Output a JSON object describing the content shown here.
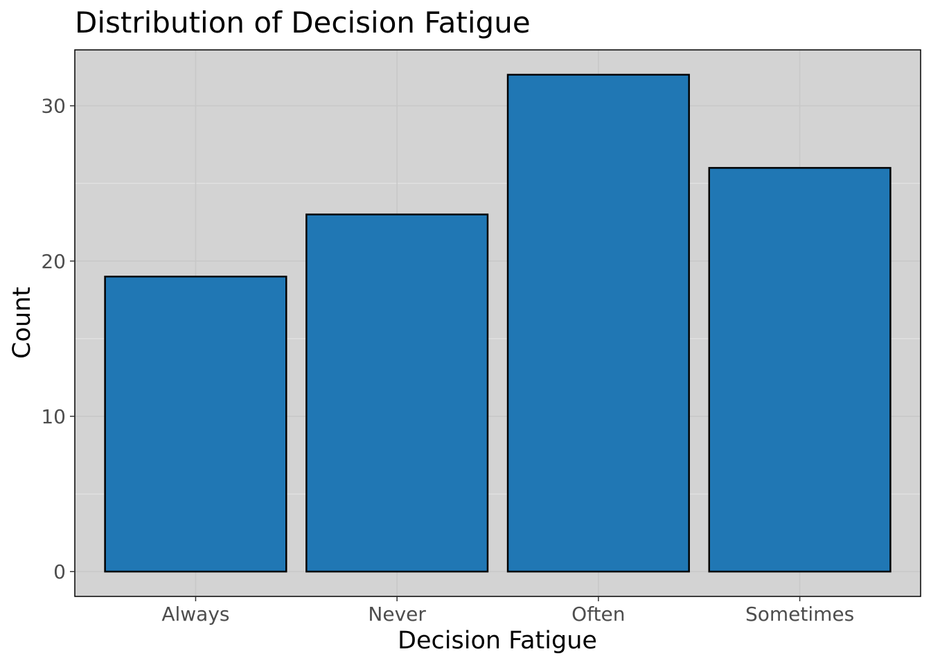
{
  "chart_data": {
    "type": "bar",
    "title": "Distribution of Decision Fatigue",
    "xlabel": "Decision Fatigue",
    "ylabel": "Count",
    "categories": [
      "Always",
      "Never",
      "Often",
      "Sometimes"
    ],
    "values": [
      19,
      23,
      32,
      26
    ],
    "ylim": [
      -1.6,
      33.6
    ],
    "yticks": [
      0,
      10,
      20,
      30
    ],
    "ytick_labels": [
      "0",
      "10",
      "20",
      "30"
    ],
    "grid": true,
    "legend": "none",
    "colors": {
      "bar_fill": "#2077b4",
      "bar_outline": "#000000",
      "panel_background": "#d3d3d3",
      "grid_major": "#c8c8c8",
      "grid_minor": "#e6e6e6"
    }
  }
}
